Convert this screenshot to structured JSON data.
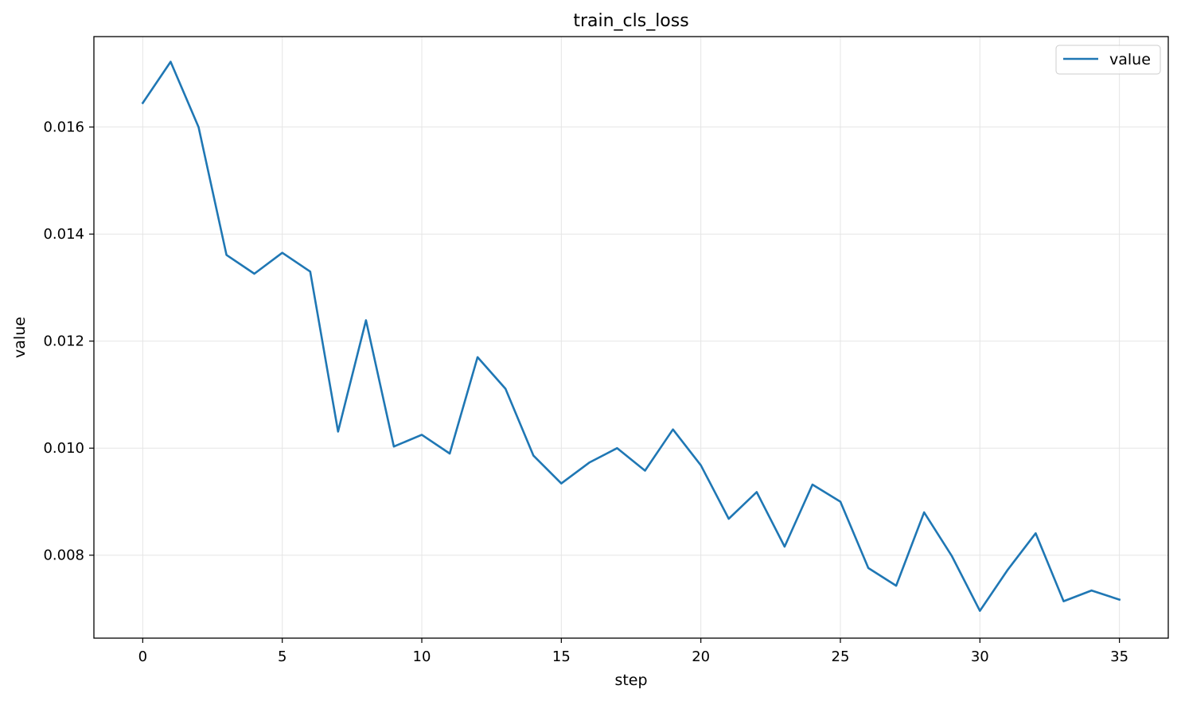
{
  "chart_data": {
    "type": "line",
    "title": "train_cls_loss",
    "xlabel": "step",
    "ylabel": "value",
    "xlim": [
      -1.75,
      36.75
    ],
    "ylim": [
      0.00645,
      0.01769
    ],
    "xticks": [
      0,
      5,
      10,
      15,
      20,
      25,
      30,
      35
    ],
    "xtick_labels": [
      "0",
      "5",
      "10",
      "15",
      "20",
      "25",
      "30",
      "35"
    ],
    "yticks": [
      0.008,
      0.01,
      0.012,
      0.014,
      0.016
    ],
    "ytick_labels": [
      "0.008",
      "0.010",
      "0.012",
      "0.014",
      "0.016"
    ],
    "grid": true,
    "legend_position": "top-right",
    "colors": {
      "series": "#1f77b4",
      "grid": "#e5e5e5",
      "axes": "#000000"
    },
    "series": [
      {
        "name": "value",
        "x": [
          0,
          1,
          2,
          3,
          4,
          5,
          6,
          7,
          8,
          9,
          10,
          11,
          12,
          13,
          14,
          15,
          16,
          17,
          18,
          19,
          20,
          21,
          22,
          23,
          24,
          25,
          26,
          27,
          28,
          29,
          30,
          31,
          32,
          33,
          34,
          35
        ],
        "y": [
          0.01645,
          0.01722,
          0.016,
          0.01361,
          0.01326,
          0.01365,
          0.0133,
          0.01031,
          0.01239,
          0.01003,
          0.01025,
          0.0099,
          0.0117,
          0.01111,
          0.00986,
          0.00934,
          0.00973,
          0.01,
          0.00958,
          0.01035,
          0.00968,
          0.00868,
          0.00918,
          0.00816,
          0.00932,
          0.009,
          0.00776,
          0.00743,
          0.0088,
          0.00798,
          0.00696,
          0.00773,
          0.00841,
          0.00714,
          0.00734,
          0.00717
        ]
      }
    ]
  }
}
